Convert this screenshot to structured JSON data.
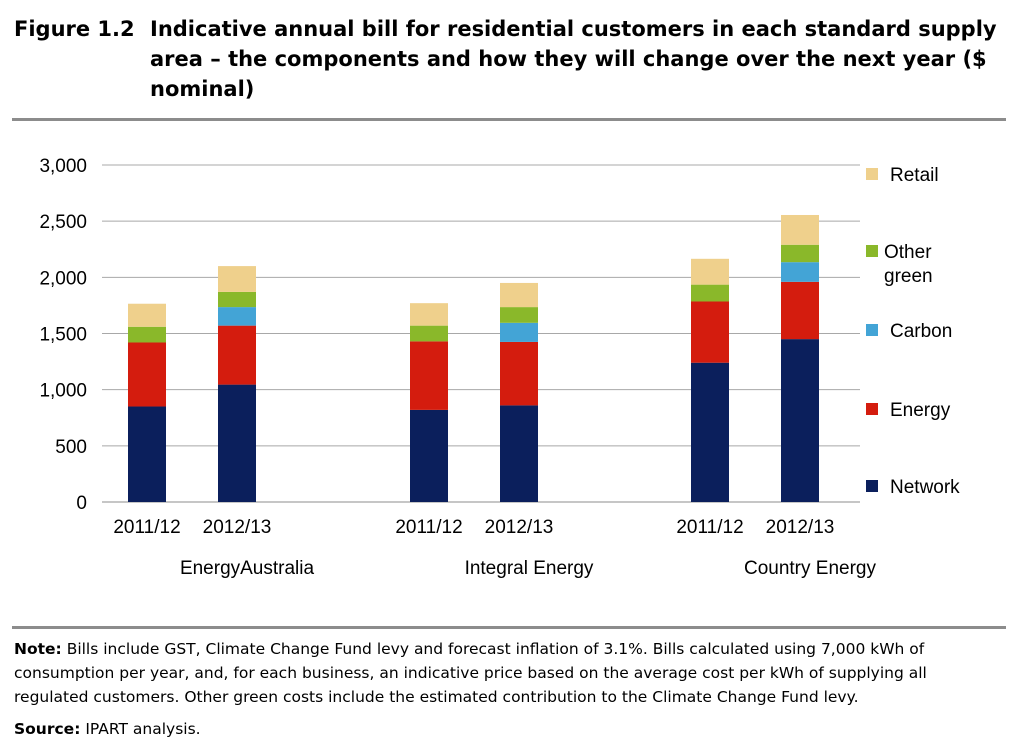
{
  "figure": {
    "label": "Figure 1.2",
    "title": "Indicative annual bill for residential customers in each standard supply area – the components and how they will change over the next year ($ nominal)"
  },
  "note": {
    "label": "Note:",
    "text": "Bills include GST, Climate Change Fund levy and forecast inflation of 3.1%.  Bills calculated using 7,000 kWh of consumption per year, and, for each business, an indicative price based on the average cost per kWh of supplying all regulated customers.  Other green costs include the estimated contribution to the Climate Change Fund levy."
  },
  "source": {
    "label": "Source:",
    "text": "IPART analysis."
  },
  "chart_data": {
    "type": "bar",
    "stacked": true,
    "groups": [
      "EnergyAustralia",
      "Integral Energy",
      "Country Energy"
    ],
    "categories": [
      "2011/12",
      "2012/13"
    ],
    "ylim": [
      0,
      3000
    ],
    "yticks": [
      0,
      500,
      1000,
      1500,
      2000,
      2500,
      3000
    ],
    "ytick_labels": [
      "0",
      "500",
      "1,000",
      "1,500",
      "2,000",
      "2,500",
      "3,000"
    ],
    "grid": true,
    "legend_position": "right",
    "legend_order": [
      "Retail",
      "Other green",
      "Carbon",
      "Energy",
      "Network"
    ],
    "series": [
      {
        "name": "Network",
        "color": "#0b1f5c",
        "values": [
          [
            850,
            1045
          ],
          [
            820,
            860
          ],
          [
            1240,
            1450
          ]
        ]
      },
      {
        "name": "Energy",
        "color": "#d41c0e",
        "values": [
          [
            570,
            525
          ],
          [
            610,
            565
          ],
          [
            545,
            510
          ]
        ]
      },
      {
        "name": "Carbon",
        "color": "#43a4d6",
        "values": [
          [
            0,
            165
          ],
          [
            0,
            170
          ],
          [
            0,
            175
          ]
        ]
      },
      {
        "name": "Other green",
        "color": "#8ab82a",
        "values": [
          [
            140,
            135
          ],
          [
            140,
            140
          ],
          [
            150,
            155
          ]
        ]
      },
      {
        "name": "Retail",
        "color": "#efd08c",
        "values": [
          [
            205,
            230
          ],
          [
            200,
            215
          ],
          [
            230,
            265
          ]
        ]
      }
    ]
  }
}
